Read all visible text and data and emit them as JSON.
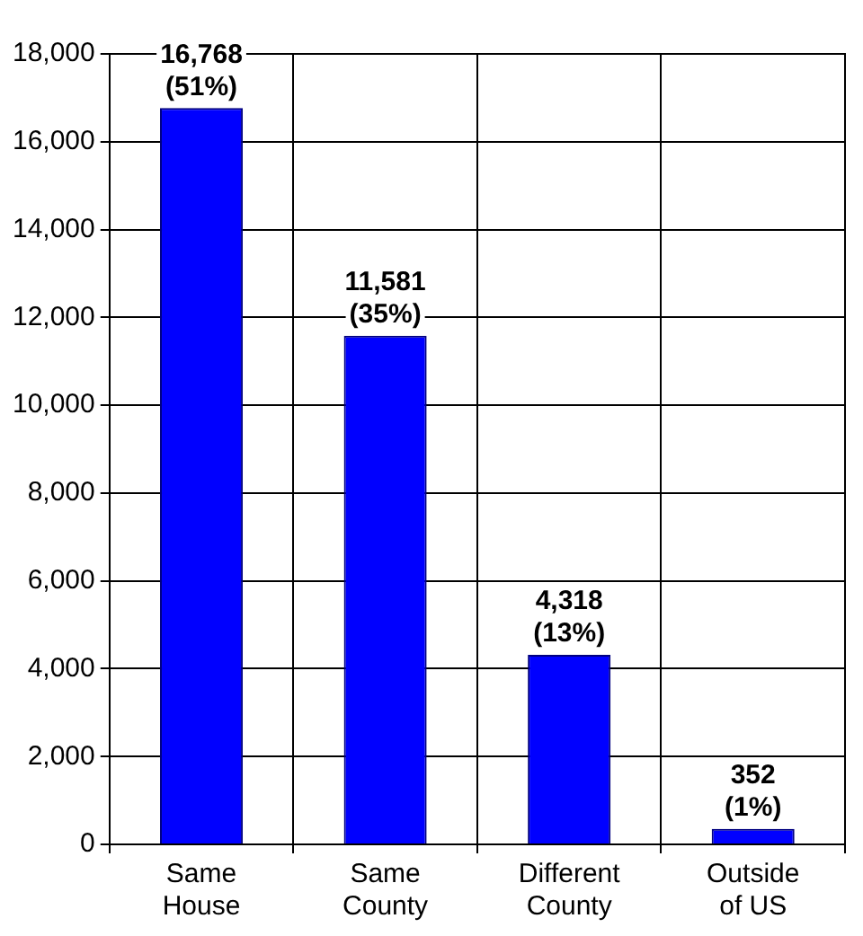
{
  "chart_data": {
    "type": "bar",
    "categories": [
      "Same House",
      "Same County",
      "Different County",
      "Outside of US"
    ],
    "values": [
      16768,
      11581,
      4318,
      352
    ],
    "value_labels": [
      "16,768 (51%)",
      "11,581 (35%)",
      "4,318 (13%)",
      "352 (1%)"
    ],
    "color": "#0000ff",
    "ylim": [
      0,
      18000
    ],
    "yticks": [
      0,
      {
        "value": 2000,
        "label": "2,000"
      },
      {
        "value": 4000,
        "label": "4,000"
      },
      {
        "value": 6000,
        "label": "6,000"
      },
      {
        "value": 8000,
        "label": "8,000"
      },
      {
        "value": 10000,
        "label": "10,000"
      },
      {
        "value": 12000,
        "label": "12,000"
      },
      {
        "value": 14000,
        "label": "14,000"
      },
      {
        "value": 16000,
        "label": "16,000"
      },
      {
        "value": 18000,
        "label": "18,000"
      }
    ],
    "grid": true,
    "legend": false
  }
}
